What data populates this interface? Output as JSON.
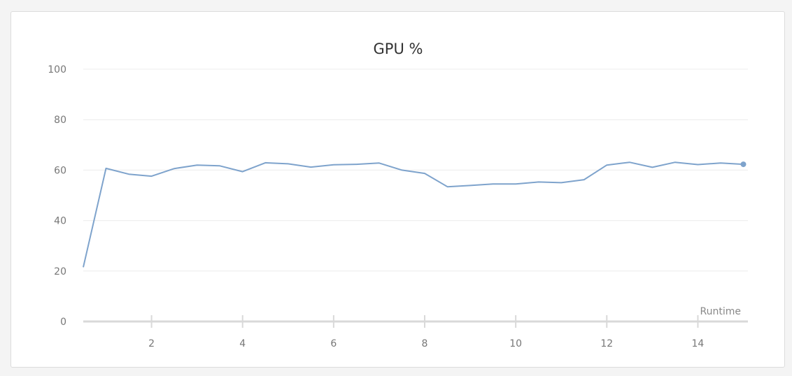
{
  "chart_data": {
    "type": "line",
    "title": "GPU %",
    "xlabel": "Runtime",
    "ylabel": "",
    "xlim": [
      0.5,
      15.1
    ],
    "ylim": [
      0,
      100
    ],
    "x_ticks": [
      2,
      4,
      6,
      8,
      10,
      12,
      14
    ],
    "y_ticks": [
      0,
      20,
      40,
      60,
      80,
      100
    ],
    "grid": true,
    "line_color": "#7ea3cc",
    "series": [
      {
        "x": [
          0.5,
          1.0,
          1.5,
          2.0,
          2.5,
          3.0,
          3.5,
          4.0,
          4.5,
          5.0,
          5.5,
          6.0,
          6.5,
          7.0,
          7.5,
          8.0,
          8.5,
          9.0,
          9.5,
          10.0,
          10.5,
          11.0,
          11.5,
          12.0,
          12.5,
          13.0,
          13.5,
          14.0,
          14.5,
          15.0
        ],
        "y": [
          21.5,
          60.7,
          58.4,
          57.6,
          60.6,
          62.0,
          61.7,
          59.4,
          62.9,
          62.5,
          61.2,
          62.1,
          62.3,
          62.8,
          60.0,
          58.7,
          53.4,
          53.9,
          54.5,
          54.5,
          55.3,
          55.0,
          56.2,
          62.0,
          63.1,
          61.1,
          63.1,
          62.2,
          62.8,
          62.3
        ]
      }
    ]
  }
}
